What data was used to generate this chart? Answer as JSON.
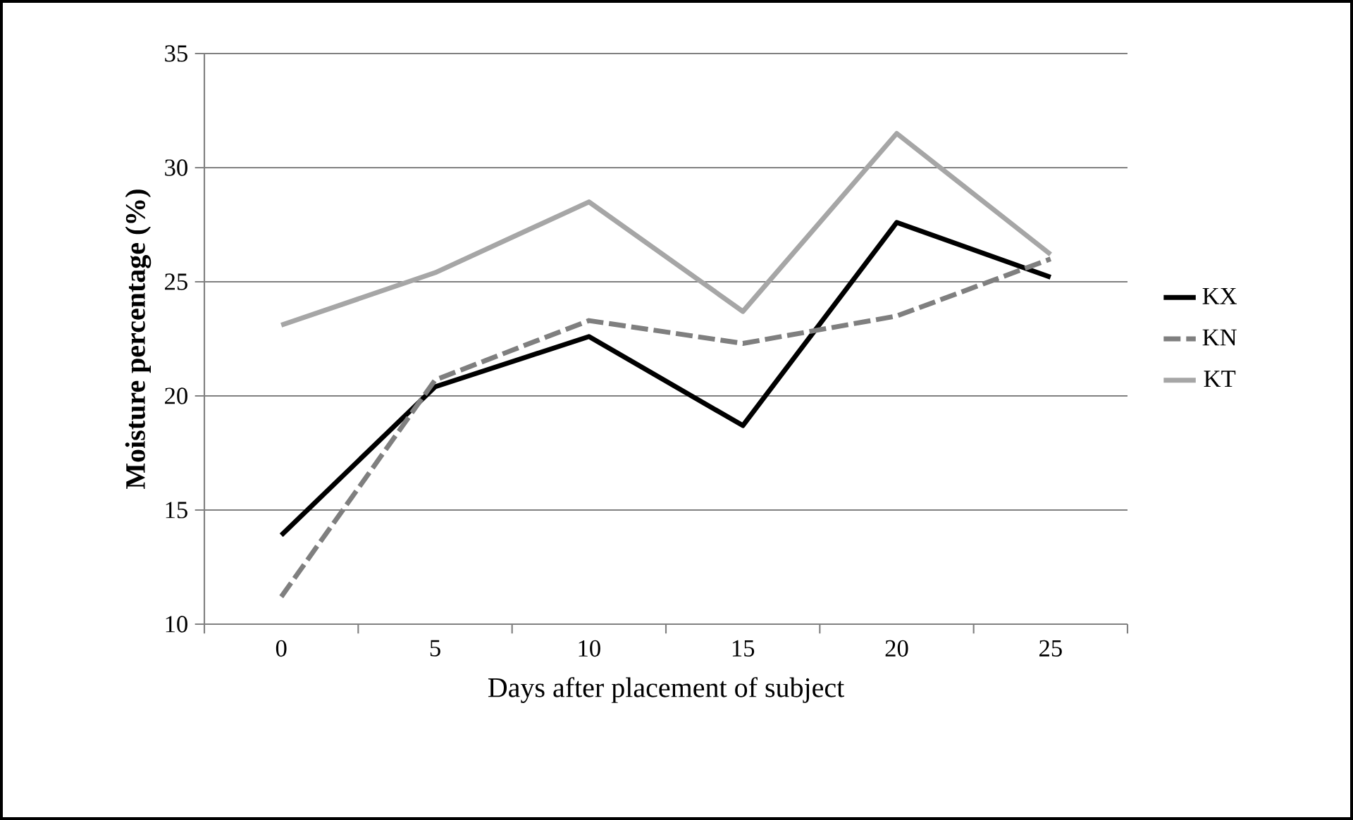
{
  "chart_data": {
    "type": "line",
    "xlabel": "Days after placement of subject",
    "ylabel": "Moisture percentage (%)",
    "categories": [
      "0",
      "5",
      "10",
      "15",
      "20",
      "25"
    ],
    "series": [
      {
        "name": "KX",
        "color": "#000000",
        "line_style": "solid",
        "values": [
          13.9,
          20.4,
          22.6,
          18.7,
          27.6,
          25.2
        ]
      },
      {
        "name": "KN",
        "color": "#7f7f7f",
        "line_style": "dashed",
        "values": [
          11.2,
          20.7,
          23.3,
          22.3,
          23.5,
          26.0
        ]
      },
      {
        "name": "KT",
        "color": "#a6a6a6",
        "line_style": "solid",
        "values": [
          23.1,
          25.4,
          28.5,
          23.7,
          31.5,
          26.2
        ]
      }
    ],
    "ylim": [
      10,
      35
    ],
    "yticks": [
      10,
      15,
      20,
      25,
      30,
      35
    ],
    "grid": "y",
    "legend": "right",
    "marker": "none"
  }
}
